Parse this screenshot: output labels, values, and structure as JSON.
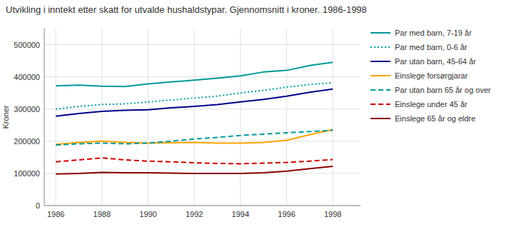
{
  "chart_data": {
    "type": "line",
    "title": "Utvikling i inntekt etter skatt for utvalde hushaldstypar. Gjennomsnitt i kroner. 1986-1998",
    "y_label": "Kroner",
    "x": [
      1986,
      1987,
      1988,
      1989,
      1990,
      1991,
      1992,
      1993,
      1994,
      1995,
      1996,
      1997,
      1998
    ],
    "series": [
      {
        "name": "Par med barn, 7-19 år",
        "color": "#00999A",
        "line_style": "solid",
        "values": [
          372000,
          374000,
          371000,
          370000,
          378000,
          384000,
          390000,
          396000,
          403000,
          415000,
          420000,
          435000,
          445000
        ]
      },
      {
        "name": "Par med barn, 0-6 år",
        "color": "#00999A",
        "line_style": "dotted",
        "values": [
          300000,
          308000,
          314000,
          316000,
          322000,
          328000,
          334000,
          340000,
          350000,
          358000,
          368000,
          376000,
          382000
        ]
      },
      {
        "name": "Par utan barn, 45-64 år",
        "color": "#00008B",
        "line_style": "solid",
        "values": [
          278000,
          286000,
          293000,
          296000,
          298000,
          304000,
          308000,
          314000,
          322000,
          330000,
          340000,
          352000,
          362000
        ]
      },
      {
        "name": "Einslege forsørgjarar",
        "color": "#FFA500",
        "line_style": "solid",
        "values": [
          190000,
          196000,
          200000,
          196000,
          194000,
          195000,
          196000,
          194000,
          194000,
          196000,
          203000,
          220000,
          236000
        ]
      },
      {
        "name": "Par utan barn 65 år og over",
        "color": "#00999A",
        "line_style": "dashed",
        "values": [
          188000,
          192000,
          194000,
          192000,
          194000,
          200000,
          207000,
          212000,
          218000,
          222000,
          226000,
          230000,
          234000
        ]
      },
      {
        "name": "Einslege under 45 år",
        "color": "#CC0000",
        "line_style": "dashed",
        "values": [
          136000,
          142000,
          148000,
          142000,
          138000,
          136000,
          133000,
          131000,
          130000,
          132000,
          134000,
          138000,
          143000
        ]
      },
      {
        "name": "Einslege 65 år og eldre",
        "color": "#8B0000",
        "line_style": "solid",
        "values": [
          98000,
          100000,
          103000,
          102000,
          102000,
          101000,
          100000,
          100000,
          100000,
          102000,
          107000,
          115000,
          122000
        ]
      }
    ],
    "xlim": [
      1985.5,
      1999.2
    ],
    "xticks": [
      1986,
      1988,
      1990,
      1992,
      1994,
      1996,
      1998
    ],
    "ylim": [
      0,
      550000
    ],
    "yticks": [
      0,
      100000,
      200000,
      300000,
      400000,
      500000
    ],
    "grid": true,
    "legend": "right"
  }
}
